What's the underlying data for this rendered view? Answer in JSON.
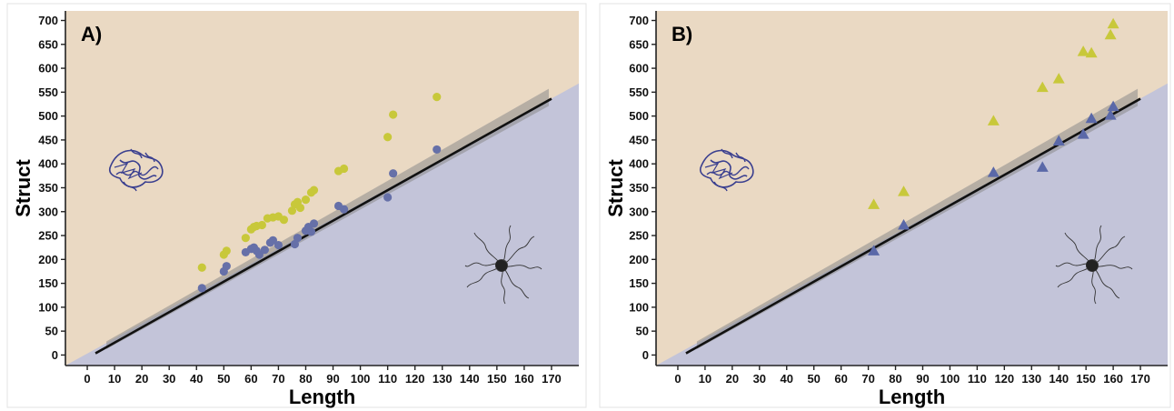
{
  "chart_data": [
    {
      "type": "scatter",
      "panel_label": "A)",
      "xlabel": "Length",
      "ylabel": "Struct",
      "xlim": [
        -8,
        180
      ],
      "ylim": [
        -22,
        720
      ],
      "x_ticks": [
        0,
        10,
        20,
        30,
        40,
        50,
        60,
        70,
        80,
        90,
        100,
        110,
        120,
        130,
        140,
        150,
        160,
        170
      ],
      "y_ticks": [
        0,
        50,
        100,
        150,
        200,
        250,
        300,
        350,
        400,
        450,
        500,
        550,
        600,
        650,
        700
      ],
      "marker": "circle",
      "boundary": {
        "slope": 3.19,
        "intercept": -6,
        "x_range": [
          3,
          170
        ]
      },
      "region_colors": {
        "above": "#ead9c3",
        "below": "#c3c4d9"
      },
      "series": [
        {
          "color": "#c8c83a",
          "points": [
            [
              42,
              183
            ],
            [
              50,
              210
            ],
            [
              51,
              218
            ],
            [
              58,
              245
            ],
            [
              60,
              263
            ],
            [
              61,
              268
            ],
            [
              62,
              270
            ],
            [
              64,
              272
            ],
            [
              66,
              286
            ],
            [
              68,
              288
            ],
            [
              70,
              290
            ],
            [
              72,
              283
            ],
            [
              75,
              302
            ],
            [
              76,
              315
            ],
            [
              77,
              320
            ],
            [
              78,
              308
            ],
            [
              80,
              325
            ],
            [
              82,
              340
            ],
            [
              83,
              345
            ],
            [
              92,
              385
            ],
            [
              94,
              390
            ],
            [
              110,
              456
            ],
            [
              112,
              503
            ],
            [
              128,
              540
            ]
          ]
        },
        {
          "color": "#6670a8",
          "points": [
            [
              42,
              140
            ],
            [
              50,
              175
            ],
            [
              51,
              186
            ],
            [
              58,
              215
            ],
            [
              60,
              222
            ],
            [
              61,
              225
            ],
            [
              62,
              218
            ],
            [
              63,
              210
            ],
            [
              65,
              220
            ],
            [
              67,
              235
            ],
            [
              68,
              240
            ],
            [
              70,
              230
            ],
            [
              76,
              232
            ],
            [
              77,
              245
            ],
            [
              80,
              260
            ],
            [
              81,
              268
            ],
            [
              82,
              258
            ],
            [
              83,
              275
            ],
            [
              92,
              312
            ],
            [
              94,
              305
            ],
            [
              110,
              330
            ],
            [
              112,
              380
            ],
            [
              128,
              430
            ]
          ]
        }
      ]
    },
    {
      "type": "scatter",
      "panel_label": "B)",
      "xlabel": "Length",
      "ylabel": "Struct",
      "xlim": [
        -8,
        180
      ],
      "ylim": [
        -22,
        720
      ],
      "x_ticks": [
        0,
        10,
        20,
        30,
        40,
        50,
        60,
        70,
        80,
        90,
        100,
        110,
        120,
        130,
        140,
        150,
        160,
        170
      ],
      "y_ticks": [
        0,
        50,
        100,
        150,
        200,
        250,
        300,
        350,
        400,
        450,
        500,
        550,
        600,
        650,
        700
      ],
      "marker": "triangle",
      "boundary": {
        "slope": 3.19,
        "intercept": -6,
        "x_range": [
          3,
          170
        ]
      },
      "region_colors": {
        "above": "#ead9c3",
        "below": "#c3c4d9"
      },
      "series": [
        {
          "color": "#c8c83a",
          "points": [
            [
              72,
              315
            ],
            [
              83,
              342
            ],
            [
              116,
              490
            ],
            [
              134,
              560
            ],
            [
              140,
              578
            ],
            [
              149,
              635
            ],
            [
              152,
              632
            ],
            [
              159,
              670
            ],
            [
              160,
              693
            ]
          ]
        },
        {
          "color": "#5a68a8",
          "points": [
            [
              72,
              218
            ],
            [
              83,
              272
            ],
            [
              116,
              382
            ],
            [
              134,
              393
            ],
            [
              140,
              448
            ],
            [
              149,
              462
            ],
            [
              152,
              495
            ],
            [
              159,
              502
            ],
            [
              160,
              520
            ]
          ]
        }
      ]
    }
  ]
}
